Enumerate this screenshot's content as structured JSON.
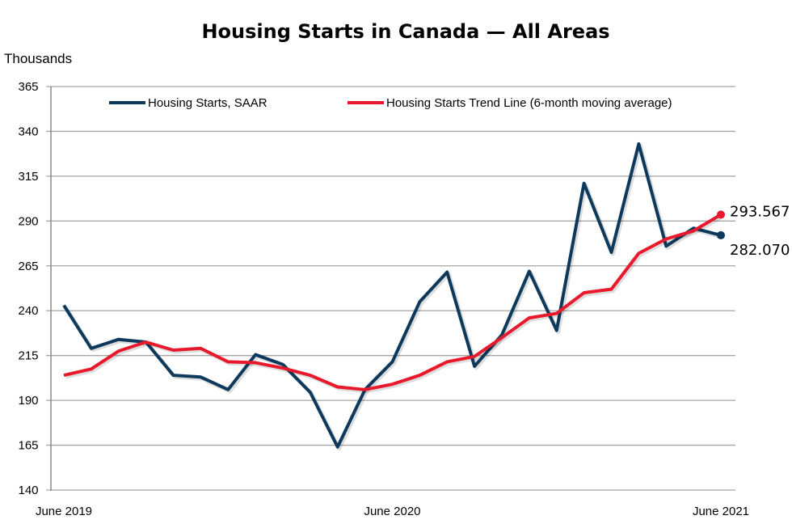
{
  "chart_data": {
    "type": "line",
    "title": "Housing Starts in Canada — All Areas",
    "ylabel": "Thousands",
    "xlabel": "",
    "ylim": [
      140,
      365
    ],
    "yticks": [
      140,
      165,
      190,
      215,
      240,
      265,
      290,
      315,
      340,
      365
    ],
    "grid": true,
    "legend": "top",
    "x": [
      "Jun 2019",
      "Jul 2019",
      "Aug 2019",
      "Sep 2019",
      "Oct 2019",
      "Nov 2019",
      "Dec 2019",
      "Jan 2020",
      "Feb 2020",
      "Mar 2020",
      "Apr 2020",
      "May 2020",
      "Jun 2020",
      "Jul 2020",
      "Aug 2020",
      "Sep 2020",
      "Oct 2020",
      "Nov 2020",
      "Dec 2020",
      "Jan 2021",
      "Feb 2021",
      "Mar 2021",
      "Apr 2021",
      "May 2021",
      "Jun 2021"
    ],
    "xtick_labels": [
      {
        "index": 0,
        "label": "June 2019"
      },
      {
        "index": 12,
        "label": "June 2020"
      },
      {
        "index": 24,
        "label": "June 2021"
      }
    ],
    "series": [
      {
        "name": "Housing Starts, SAAR",
        "color": "#0d3a5c",
        "values": [
          243,
          219,
          224,
          222.5,
          204,
          203,
          196,
          215.5,
          210,
          194.5,
          164,
          196,
          211.5,
          245,
          261.5,
          209,
          226.5,
          262,
          229,
          311,
          272.5,
          333,
          276,
          286,
          282.07
        ]
      },
      {
        "name": "Housing Starts Trend Line (6-month moving average)",
        "color": "#e8192c",
        "values": [
          204,
          207.5,
          217.5,
          222.5,
          218,
          219,
          211.5,
          211,
          208,
          204,
          197.5,
          196,
          199,
          204,
          211.5,
          214.5,
          225,
          236,
          238.5,
          250,
          252,
          272,
          280,
          284.5,
          293.567
        ]
      }
    ],
    "data_labels": [
      {
        "series": 1,
        "index": 24,
        "text": "293.567"
      },
      {
        "series": 0,
        "index": 24,
        "text": "282.070"
      }
    ]
  }
}
